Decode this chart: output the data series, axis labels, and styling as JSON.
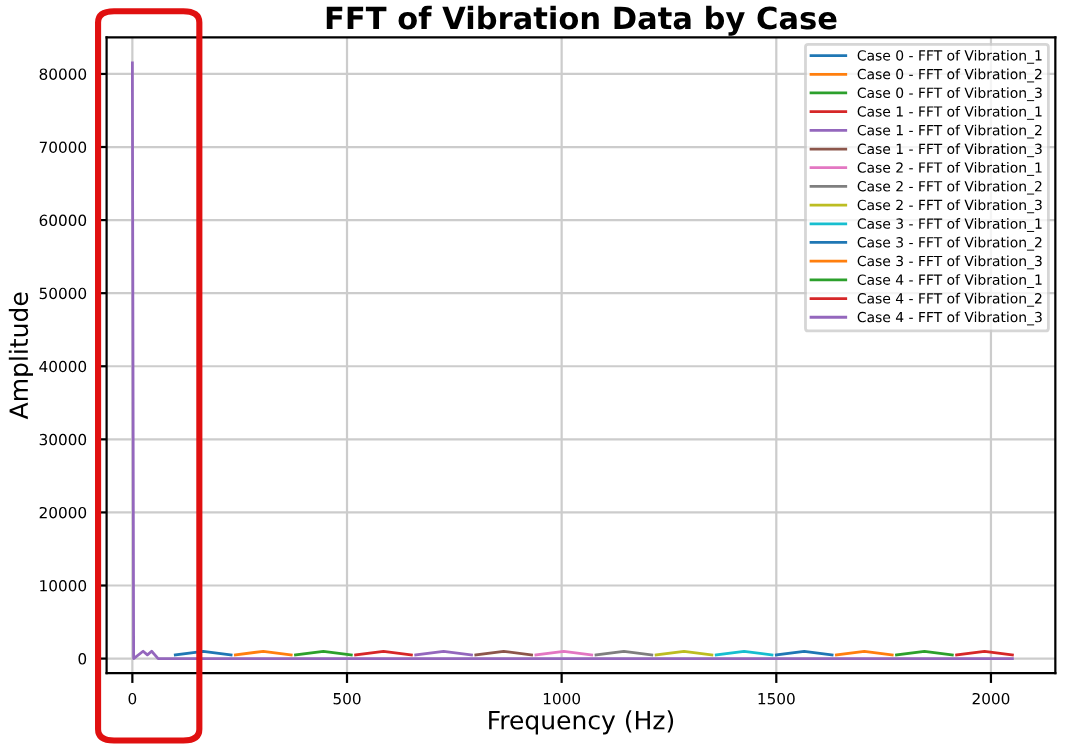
{
  "chart_data": {
    "type": "line",
    "title": "FFT of Vibration Data by Case",
    "xlabel": "Frequency (Hz)",
    "ylabel": "Amplitude",
    "xlim": [
      -60,
      2150
    ],
    "ylim": [
      -2000,
      85000
    ],
    "xticks": [
      0,
      500,
      1000,
      1500,
      2000
    ],
    "yticks": [
      0,
      10000,
      20000,
      30000,
      40000,
      50000,
      60000,
      70000,
      80000
    ],
    "grid": true,
    "legend": "top right",
    "marker": "none",
    "line_style": "solid",
    "series": [
      {
        "name": "Case 0 - FFT of Vibration_1",
        "color": "#1f77b4",
        "x": [
          100,
          165,
          230
        ],
        "values": [
          500,
          1000,
          500
        ]
      },
      {
        "name": "Case 0 - FFT of Vibration_2",
        "color": "#ff7f0e",
        "x": [
          240,
          305,
          370
        ],
        "values": [
          500,
          1000,
          500
        ]
      },
      {
        "name": "Case 0 - FFT of Vibration_3",
        "color": "#2ca02c",
        "x": [
          380,
          445,
          510
        ],
        "values": [
          500,
          1000,
          500
        ]
      },
      {
        "name": "Case 1 - FFT of Vibration_1",
        "color": "#d62728",
        "x": [
          520,
          585,
          650
        ],
        "values": [
          500,
          1000,
          500
        ]
      },
      {
        "name": "Case 1 - FFT of Vibration_2",
        "color": "#9467bd",
        "x": [
          660,
          725,
          790
        ],
        "values": [
          500,
          1000,
          500
        ]
      },
      {
        "name": "Case 1 - FFT of Vibration_3",
        "color": "#8c564b",
        "x": [
          800,
          865,
          930
        ],
        "values": [
          500,
          1000,
          500
        ]
      },
      {
        "name": "Case 2 - FFT of Vibration_1",
        "color": "#e377c2",
        "x": [
          940,
          1005,
          1070
        ],
        "values": [
          500,
          1000,
          500
        ]
      },
      {
        "name": "Case 2 - FFT of Vibration_2",
        "color": "#7f7f7f",
        "x": [
          1080,
          1145,
          1210
        ],
        "values": [
          500,
          1000,
          500
        ]
      },
      {
        "name": "Case 2 - FFT of Vibration_3",
        "color": "#bcbd22",
        "x": [
          1220,
          1285,
          1350
        ],
        "values": [
          500,
          1000,
          500
        ]
      },
      {
        "name": "Case 3 - FFT of Vibration_1",
        "color": "#17becf",
        "x": [
          1360,
          1425,
          1490
        ],
        "values": [
          500,
          1000,
          500
        ]
      },
      {
        "name": "Case 3 - FFT of Vibration_2",
        "color": "#1f77b4",
        "x": [
          1500,
          1565,
          1630
        ],
        "values": [
          500,
          1000,
          500
        ]
      },
      {
        "name": "Case 3 - FFT of Vibration_3",
        "color": "#ff7f0e",
        "x": [
          1640,
          1705,
          1770
        ],
        "values": [
          500,
          1000,
          500
        ]
      },
      {
        "name": "Case 4 - FFT of Vibration_1",
        "color": "#2ca02c",
        "x": [
          1780,
          1845,
          1910
        ],
        "values": [
          500,
          1000,
          500
        ]
      },
      {
        "name": "Case 4 - FFT of Vibration_2",
        "color": "#d62728",
        "x": [
          1920,
          1985,
          2050
        ],
        "values": [
          500,
          1000,
          500
        ]
      },
      {
        "name": "Case 4 - FFT of Vibration_3",
        "color": "#9467bd",
        "x": [
          0,
          3,
          25,
          35,
          45,
          60,
          2050
        ],
        "values": [
          81500,
          0,
          1000,
          500,
          1000,
          0,
          0
        ]
      }
    ]
  }
}
